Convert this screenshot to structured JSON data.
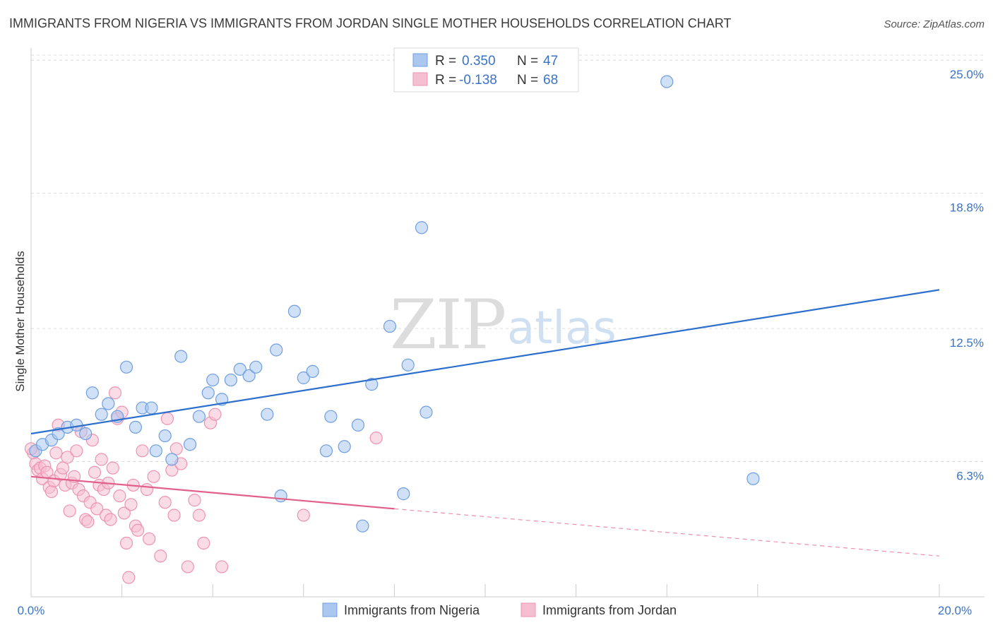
{
  "chart_data": {
    "type": "scatter",
    "title": "IMMIGRANTS FROM NIGERIA VS IMMIGRANTS FROM JORDAN SINGLE MOTHER HOUSEHOLDS CORRELATION CHART",
    "source": "Source: ZipAtlas.com",
    "ylabel": "Single Mother Households",
    "xlim": [
      0,
      20
    ],
    "ylim": [
      0,
      25.5
    ],
    "y_ticks": [
      {
        "value": 6.3,
        "label": "6.3%"
      },
      {
        "value": 12.5,
        "label": "12.5%"
      },
      {
        "value": 18.8,
        "label": "18.8%"
      },
      {
        "value": 25.0,
        "label": "25.0%"
      }
    ],
    "x_tick_labels": {
      "min": "0.0%",
      "max": "20.0%"
    },
    "x_minor_ticks": [
      0,
      2,
      4,
      6,
      8,
      10,
      12,
      14,
      16,
      20
    ],
    "watermark": {
      "zip": "ZIP",
      "atlas": "atlas"
    },
    "legend": {
      "entries": [
        {
          "r_label": "R =",
          "r_value": "0.350",
          "n_label": "N =",
          "n_value": "47"
        },
        {
          "r_label": "R =",
          "r_value": "-0.138",
          "n_label": "N =",
          "n_value": "68"
        }
      ]
    },
    "series": [
      {
        "name": "Immigrants from Nigeria",
        "color": "#a9c7ef",
        "stroke": "#6f9fe0",
        "line_color": "#2c6fcc",
        "trend": {
          "x0": 0,
          "y0": 7.6,
          "x1": 20,
          "y1": 14.3
        },
        "points": [
          [
            0.1,
            6.8
          ],
          [
            0.25,
            7.1
          ],
          [
            0.45,
            7.3
          ],
          [
            0.6,
            7.6
          ],
          [
            0.8,
            7.9
          ],
          [
            1.0,
            8.0
          ],
          [
            1.2,
            7.6
          ],
          [
            1.35,
            9.5
          ],
          [
            1.55,
            8.5
          ],
          [
            1.7,
            9.0
          ],
          [
            1.9,
            8.4
          ],
          [
            2.1,
            10.7
          ],
          [
            2.3,
            7.9
          ],
          [
            2.45,
            8.8
          ],
          [
            2.65,
            8.8
          ],
          [
            2.75,
            6.8
          ],
          [
            2.95,
            7.5
          ],
          [
            3.1,
            6.4
          ],
          [
            3.3,
            11.2
          ],
          [
            3.5,
            7.1
          ],
          [
            3.7,
            8.4
          ],
          [
            3.9,
            9.5
          ],
          [
            4.0,
            10.1
          ],
          [
            4.2,
            9.2
          ],
          [
            4.4,
            10.1
          ],
          [
            4.6,
            10.6
          ],
          [
            4.8,
            10.3
          ],
          [
            4.95,
            10.7
          ],
          [
            5.2,
            8.5
          ],
          [
            5.4,
            11.5
          ],
          [
            5.5,
            4.7
          ],
          [
            5.8,
            13.3
          ],
          [
            6.0,
            10.2
          ],
          [
            6.2,
            10.5
          ],
          [
            6.5,
            6.8
          ],
          [
            6.6,
            8.4
          ],
          [
            6.9,
            7.0
          ],
          [
            7.2,
            8.0
          ],
          [
            7.3,
            3.3
          ],
          [
            7.5,
            9.9
          ],
          [
            7.9,
            12.6
          ],
          [
            8.2,
            4.8
          ],
          [
            8.3,
            10.8
          ],
          [
            8.6,
            17.2
          ],
          [
            8.7,
            8.6
          ],
          [
            14.0,
            24.0
          ],
          [
            15.9,
            5.5
          ]
        ]
      },
      {
        "name": "Immigrants from Jordan",
        "color": "#f6bfd1",
        "stroke": "#ee93b2",
        "line_color": "#e2608c",
        "trend": {
          "x0": 0,
          "y0": 5.6,
          "x1": 8.0,
          "y1": 4.1
        },
        "trend_dash": {
          "x0": 8.0,
          "y0": 4.1,
          "x1": 20,
          "y1": 1.9
        },
        "points": [
          [
            0.05,
            6.7
          ],
          [
            0.1,
            6.2
          ],
          [
            0.15,
            5.9
          ],
          [
            0.2,
            6.0
          ],
          [
            0.25,
            5.5
          ],
          [
            0.3,
            6.1
          ],
          [
            0.35,
            5.8
          ],
          [
            0.4,
            5.1
          ],
          [
            0.45,
            4.9
          ],
          [
            0.5,
            5.4
          ],
          [
            0.55,
            6.7
          ],
          [
            0.6,
            8.0
          ],
          [
            0.65,
            5.7
          ],
          [
            0.7,
            6.0
          ],
          [
            0.75,
            5.2
          ],
          [
            0.8,
            6.5
          ],
          [
            0.85,
            4.0
          ],
          [
            0.9,
            5.3
          ],
          [
            0.95,
            5.6
          ],
          [
            1.0,
            6.8
          ],
          [
            1.05,
            5.0
          ],
          [
            1.1,
            7.7
          ],
          [
            1.15,
            4.7
          ],
          [
            1.2,
            3.6
          ],
          [
            1.25,
            3.5
          ],
          [
            1.3,
            4.4
          ],
          [
            1.35,
            7.3
          ],
          [
            1.4,
            5.8
          ],
          [
            1.45,
            4.1
          ],
          [
            1.5,
            5.2
          ],
          [
            1.55,
            6.4
          ],
          [
            1.6,
            5.0
          ],
          [
            1.65,
            3.8
          ],
          [
            1.7,
            5.3
          ],
          [
            1.75,
            3.6
          ],
          [
            1.8,
            6.0
          ],
          [
            1.85,
            9.5
          ],
          [
            1.9,
            8.3
          ],
          [
            1.95,
            4.7
          ],
          [
            2.0,
            8.6
          ],
          [
            2.05,
            3.9
          ],
          [
            2.1,
            2.5
          ],
          [
            2.15,
            0.9
          ],
          [
            2.2,
            4.3
          ],
          [
            2.25,
            5.2
          ],
          [
            2.3,
            3.3
          ],
          [
            2.35,
            3.1
          ],
          [
            2.45,
            6.8
          ],
          [
            2.55,
            5.0
          ],
          [
            2.6,
            2.7
          ],
          [
            2.7,
            5.6
          ],
          [
            2.85,
            1.9
          ],
          [
            2.95,
            4.4
          ],
          [
            3.0,
            8.3
          ],
          [
            3.1,
            5.9
          ],
          [
            3.15,
            3.8
          ],
          [
            3.2,
            6.9
          ],
          [
            3.3,
            6.2
          ],
          [
            3.45,
            1.4
          ],
          [
            3.6,
            4.5
          ],
          [
            3.7,
            3.8
          ],
          [
            3.8,
            2.5
          ],
          [
            3.95,
            8.1
          ],
          [
            4.05,
            8.5
          ],
          [
            4.2,
            1.4
          ],
          [
            6.0,
            3.8
          ],
          [
            7.6,
            7.4
          ],
          [
            0.0,
            6.9
          ]
        ]
      }
    ]
  }
}
